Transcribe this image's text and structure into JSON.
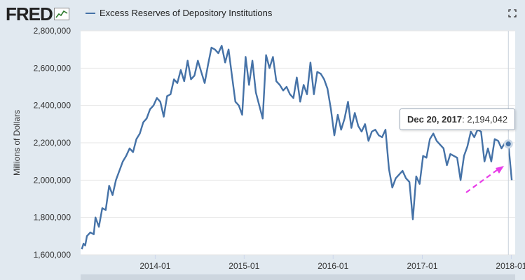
{
  "header": {
    "logo_text": "FRED",
    "series_title": "Excess Reserves of Depository Institutions"
  },
  "tooltip": {
    "date": "Dec 20, 2017",
    "value": "2,194,042"
  },
  "icons": [
    "fred-logo-icon",
    "expand-icon",
    "annotation-arrow"
  ],
  "colors": {
    "line": "#4572a7",
    "background": "#e1e9f0",
    "arrow": "#e83de8"
  },
  "chart_data": {
    "type": "line",
    "ylabel": "Millions of Dollars",
    "ylim": [
      1600000,
      2800000
    ],
    "yticks": [
      1600000,
      1800000,
      2000000,
      2200000,
      2400000,
      2600000,
      2800000
    ],
    "ytick_labels": [
      "1,600,000",
      "1,800,000",
      "2,000,000",
      "2,200,000",
      "2,400,000",
      "2,600,000",
      "2,800,000"
    ],
    "xticks": [
      "2014-01",
      "2015-01",
      "2016-01",
      "2017-01",
      "2018-01"
    ],
    "xlim": [
      "2013-03-01",
      "2018-01-17"
    ],
    "grid": true,
    "highlight": {
      "x": "2017-12-20",
      "y": 2194042
    },
    "series": [
      {
        "values": [
          [
            "2013-03-06",
            1630000
          ],
          [
            "2013-03-13",
            1660000
          ],
          [
            "2013-03-20",
            1650000
          ],
          [
            "2013-03-27",
            1700000
          ],
          [
            "2013-04-10",
            1720000
          ],
          [
            "2013-04-24",
            1710000
          ],
          [
            "2013-05-01",
            1800000
          ],
          [
            "2013-05-15",
            1750000
          ],
          [
            "2013-05-29",
            1850000
          ],
          [
            "2013-06-12",
            1840000
          ],
          [
            "2013-06-26",
            1970000
          ],
          [
            "2013-07-10",
            1920000
          ],
          [
            "2013-07-24",
            2000000
          ],
          [
            "2013-08-07",
            2050000
          ],
          [
            "2013-08-21",
            2100000
          ],
          [
            "2013-09-04",
            2130000
          ],
          [
            "2013-09-18",
            2170000
          ],
          [
            "2013-10-02",
            2150000
          ],
          [
            "2013-10-16",
            2220000
          ],
          [
            "2013-10-30",
            2250000
          ],
          [
            "2013-11-13",
            2310000
          ],
          [
            "2013-11-27",
            2330000
          ],
          [
            "2013-12-11",
            2380000
          ],
          [
            "2013-12-25",
            2400000
          ],
          [
            "2014-01-08",
            2440000
          ],
          [
            "2014-01-22",
            2420000
          ],
          [
            "2014-02-05",
            2340000
          ],
          [
            "2014-02-19",
            2450000
          ],
          [
            "2014-03-05",
            2460000
          ],
          [
            "2014-03-19",
            2540000
          ],
          [
            "2014-04-02",
            2520000
          ],
          [
            "2014-04-16",
            2590000
          ],
          [
            "2014-04-30",
            2530000
          ],
          [
            "2014-05-14",
            2640000
          ],
          [
            "2014-05-28",
            2540000
          ],
          [
            "2014-06-11",
            2560000
          ],
          [
            "2014-06-25",
            2640000
          ],
          [
            "2014-07-09",
            2580000
          ],
          [
            "2014-07-23",
            2520000
          ],
          [
            "2014-08-06",
            2620000
          ],
          [
            "2014-08-20",
            2710000
          ],
          [
            "2014-09-03",
            2700000
          ],
          [
            "2014-09-17",
            2680000
          ],
          [
            "2014-10-01",
            2720000
          ],
          [
            "2014-10-15",
            2630000
          ],
          [
            "2014-10-29",
            2700000
          ],
          [
            "2014-11-12",
            2560000
          ],
          [
            "2014-11-26",
            2420000
          ],
          [
            "2014-12-10",
            2400000
          ],
          [
            "2014-12-24",
            2350000
          ],
          [
            "2015-01-07",
            2660000
          ],
          [
            "2015-01-21",
            2510000
          ],
          [
            "2015-02-04",
            2640000
          ],
          [
            "2015-02-18",
            2470000
          ],
          [
            "2015-03-04",
            2400000
          ],
          [
            "2015-03-18",
            2330000
          ],
          [
            "2015-04-01",
            2670000
          ],
          [
            "2015-04-15",
            2600000
          ],
          [
            "2015-04-29",
            2660000
          ],
          [
            "2015-05-13",
            2530000
          ],
          [
            "2015-05-27",
            2510000
          ],
          [
            "2015-06-10",
            2480000
          ],
          [
            "2015-06-24",
            2500000
          ],
          [
            "2015-07-08",
            2460000
          ],
          [
            "2015-07-22",
            2440000
          ],
          [
            "2015-08-05",
            2550000
          ],
          [
            "2015-08-19",
            2420000
          ],
          [
            "2015-09-02",
            2510000
          ],
          [
            "2015-09-16",
            2460000
          ],
          [
            "2015-09-30",
            2630000
          ],
          [
            "2015-10-14",
            2460000
          ],
          [
            "2015-10-28",
            2580000
          ],
          [
            "2015-11-11",
            2570000
          ],
          [
            "2015-11-25",
            2540000
          ],
          [
            "2015-12-09",
            2490000
          ],
          [
            "2015-12-23",
            2380000
          ],
          [
            "2016-01-06",
            2240000
          ],
          [
            "2016-01-20",
            2350000
          ],
          [
            "2016-02-03",
            2270000
          ],
          [
            "2016-02-17",
            2330000
          ],
          [
            "2016-03-02",
            2420000
          ],
          [
            "2016-03-16",
            2280000
          ],
          [
            "2016-03-30",
            2360000
          ],
          [
            "2016-04-13",
            2290000
          ],
          [
            "2016-04-27",
            2260000
          ],
          [
            "2016-05-11",
            2300000
          ],
          [
            "2016-05-25",
            2210000
          ],
          [
            "2016-06-08",
            2260000
          ],
          [
            "2016-06-22",
            2270000
          ],
          [
            "2016-07-06",
            2240000
          ],
          [
            "2016-07-20",
            2230000
          ],
          [
            "2016-08-03",
            2270000
          ],
          [
            "2016-08-17",
            2060000
          ],
          [
            "2016-08-31",
            1960000
          ],
          [
            "2016-09-14",
            2010000
          ],
          [
            "2016-09-28",
            2030000
          ],
          [
            "2016-10-12",
            2050000
          ],
          [
            "2016-10-26",
            2010000
          ],
          [
            "2016-11-09",
            1990000
          ],
          [
            "2016-11-23",
            1790000
          ],
          [
            "2016-12-07",
            2020000
          ],
          [
            "2016-12-21",
            1980000
          ],
          [
            "2017-01-04",
            2130000
          ],
          [
            "2017-01-18",
            2120000
          ],
          [
            "2017-02-01",
            2220000
          ],
          [
            "2017-02-15",
            2250000
          ],
          [
            "2017-03-01",
            2210000
          ],
          [
            "2017-03-15",
            2190000
          ],
          [
            "2017-03-29",
            2170000
          ],
          [
            "2017-04-12",
            2080000
          ],
          [
            "2017-04-26",
            2140000
          ],
          [
            "2017-05-10",
            2130000
          ],
          [
            "2017-05-24",
            2120000
          ],
          [
            "2017-06-07",
            2000000
          ],
          [
            "2017-06-21",
            2130000
          ],
          [
            "2017-07-05",
            2180000
          ],
          [
            "2017-07-19",
            2260000
          ],
          [
            "2017-08-02",
            2230000
          ],
          [
            "2017-08-16",
            2270000
          ],
          [
            "2017-08-30",
            2260000
          ],
          [
            "2017-09-13",
            2100000
          ],
          [
            "2017-09-27",
            2170000
          ],
          [
            "2017-10-11",
            2100000
          ],
          [
            "2017-10-25",
            2220000
          ],
          [
            "2017-11-08",
            2210000
          ],
          [
            "2017-11-22",
            2170000
          ],
          [
            "2017-12-06",
            2200000
          ],
          [
            "2017-12-20",
            2194042
          ],
          [
            "2018-01-03",
            2000000
          ]
        ]
      }
    ]
  }
}
